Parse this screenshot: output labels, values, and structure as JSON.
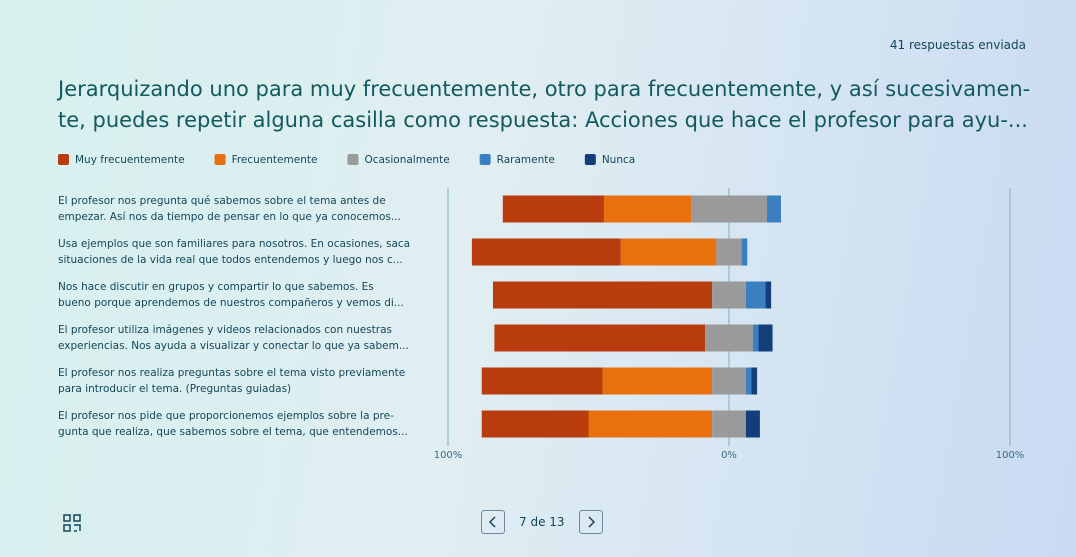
{
  "header": {
    "responses": "41 respuestas enviada"
  },
  "chart_data": {
    "type": "diverging_bar",
    "title": "Jerarquizando uno para muy frecuentemente, otro para frecuentemente, y así sucesivamen-\nte, puedes repetir alguna casilla como respuesta:  Acciones que hace el profesor para ayu-...",
    "categories": [
      "El profesor nos pregunta qué sabemos sobre el tema antes de\nempezar. Así nos da tiempo de pensar en lo que ya conocemos...",
      "Usa ejemplos que son familiares para nosotros. En ocasiones, saca\nsituaciones de la vida real que todos entendemos y luego nos c...",
      "Nos hace discutir en grupos y compartir lo que sabemos. Es\nbueno porque aprendemos de nuestros compañeros y vemos di...",
      "El profesor utiliza imágenes y videos relacionados con nuestras\nexperiencias. Nos ayuda a visualizar y conectar lo que ya sabem...",
      "El profesor nos realiza preguntas sobre el tema visto previamente\npara introducir el tema. (Preguntas guiadas)",
      "El profesor nos pide que proporcionemos ejemplos sobre la pre-\ngunta que realiza, que sabemos sobre el tema, que entendemos..."
    ],
    "series": [
      {
        "name": "Muy frecuentemente",
        "color": "#b83c0e",
        "values": [
          36,
          53,
          78,
          75,
          43,
          38
        ]
      },
      {
        "name": "Frecuentemente",
        "color": "#e8700f",
        "values": [
          31,
          34,
          0,
          0,
          39,
          44
        ]
      },
      {
        "name": "Ocasionalmente",
        "color": "#9a9a9a",
        "values": [
          27,
          9,
          12,
          17,
          12,
          12
        ]
      },
      {
        "name": "Raramente",
        "color": "#3a80c0",
        "values": [
          5,
          2,
          7,
          2,
          2,
          0
        ]
      },
      {
        "name": "Nunca",
        "color": "#123f7a",
        "values": [
          0,
          0,
          2,
          5,
          2,
          5
        ]
      }
    ],
    "xlim": [
      -100,
      100
    ],
    "xticks": [
      {
        "value": -100,
        "label": "100%"
      },
      0,
      {
        "value": 100,
        "label": "100%"
      }
    ],
    "xtick_zero_label": "0%"
  },
  "pager": {
    "text": "7 de 13"
  }
}
